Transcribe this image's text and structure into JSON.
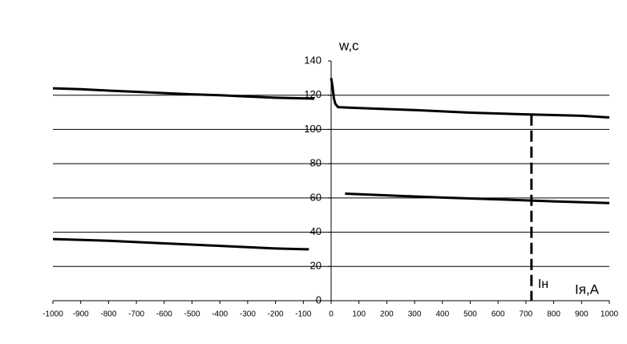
{
  "chart_data": {
    "type": "line",
    "y_label": "w,c",
    "x_label": "Iя,A",
    "xlim": [
      -1000,
      1000
    ],
    "ylim": [
      0,
      140
    ],
    "xticks": [
      -1000,
      -900,
      -800,
      -700,
      -600,
      -500,
      -400,
      -300,
      -200,
      -100,
      0,
      100,
      200,
      300,
      400,
      500,
      600,
      700,
      800,
      900,
      1000
    ],
    "yticks": [
      0,
      20,
      40,
      60,
      80,
      100,
      120,
      140
    ],
    "grid": true,
    "color": "#000000",
    "series": [
      {
        "x": [
          -1000,
          -900,
          -800,
          -700,
          -600,
          -500,
          -400,
          -300,
          -200,
          -60
        ],
        "values": [
          124,
          123.5,
          122.7,
          122,
          121.2,
          120.5,
          120,
          119.2,
          118.5,
          118
        ]
      },
      {
        "x": [
          -1000,
          -800,
          -600,
          -400,
          -200,
          -80
        ],
        "values": [
          36,
          35,
          33.5,
          32,
          30.5,
          30
        ]
      },
      {
        "x": [
          0,
          5,
          10,
          15,
          25,
          100,
          300,
          500,
          700,
          900,
          1000
        ],
        "values": [
          130,
          125,
          118,
          115,
          113,
          112.5,
          111.3,
          109.8,
          108.8,
          108,
          107
        ]
      },
      {
        "x": [
          50,
          200,
          400,
          600,
          800,
          1000
        ],
        "values": [
          62.5,
          61.5,
          60.2,
          59.2,
          58,
          57
        ]
      }
    ],
    "marker": {
      "x": 720,
      "label": "Iн"
    }
  }
}
